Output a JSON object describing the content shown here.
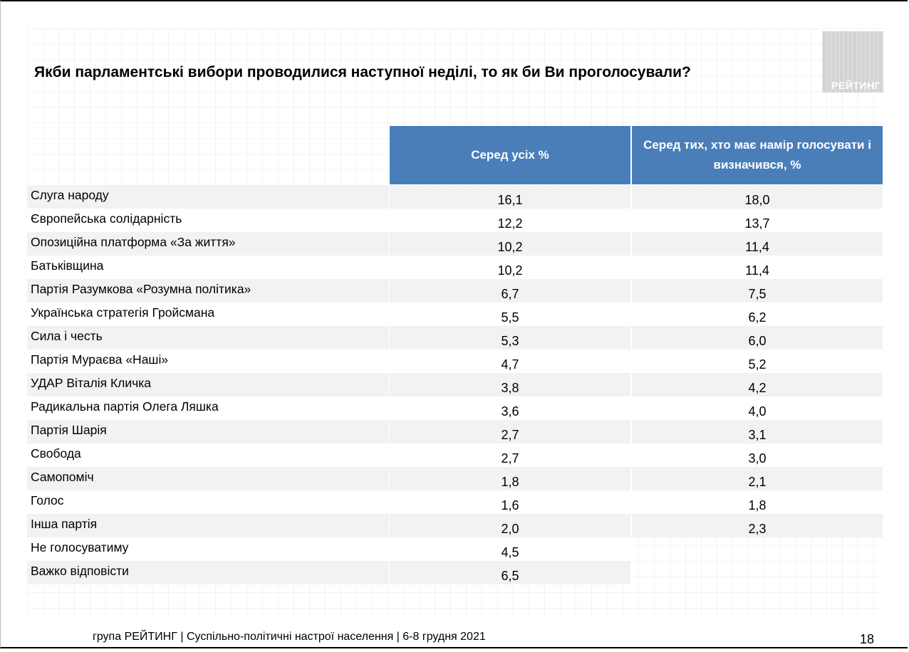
{
  "title": "Якби парламентські вибори проводилися наступної неділі, то як би Ви проголосували?",
  "logo_text": "РЕЙТИНГ",
  "columns": {
    "col1": "Серед усіх %",
    "col2": "Серед тих, хто має намір голосувати і визначився, %"
  },
  "rows": [
    {
      "name": "Слуга народу",
      "v1": "16,1",
      "v2": "18,0"
    },
    {
      "name": "Європейська солідарність",
      "v1": "12,2",
      "v2": "13,7"
    },
    {
      "name": "Опозиційна платформа «За життя»",
      "v1": "10,2",
      "v2": "11,4"
    },
    {
      "name": "Батьківщина",
      "v1": "10,2",
      "v2": "11,4"
    },
    {
      "name": "Партія Разумкова «Розумна політика»",
      "v1": "6,7",
      "v2": "7,5"
    },
    {
      "name": "Українська стратегія Гройсмана",
      "v1": "5,5",
      "v2": "6,2"
    },
    {
      "name": "Сила і честь",
      "v1": "5,3",
      "v2": "6,0"
    },
    {
      "name": "Партія Мураєва «Наші»",
      "v1": "4,7",
      "v2": "5,2"
    },
    {
      "name": "УДАР Віталія Кличка",
      "v1": "3,8",
      "v2": "4,2"
    },
    {
      "name": "Радикальна партія Олега Ляшка",
      "v1": "3,6",
      "v2": "4,0"
    },
    {
      "name": "Партія Шарія",
      "v1": "2,7",
      "v2": "3,1"
    },
    {
      "name": "Свобода",
      "v1": "2,7",
      "v2": "3,0"
    },
    {
      "name": "Самопоміч",
      "v1": "1,8",
      "v2": "2,1"
    },
    {
      "name": "Голос",
      "v1": "1,6",
      "v2": "1,8"
    },
    {
      "name": "Інша партія",
      "v1": "2,0",
      "v2": "2,3"
    },
    {
      "name": "Не голосуватиму",
      "v1": "4,5",
      "v2": ""
    },
    {
      "name": "Важко відповісти",
      "v1": "6,5",
      "v2": ""
    }
  ],
  "footer": "група РЕЙТИНГ | Суспільно-політичні настрої населення  | 6-8 грудня 2021",
  "page_number": "18"
}
